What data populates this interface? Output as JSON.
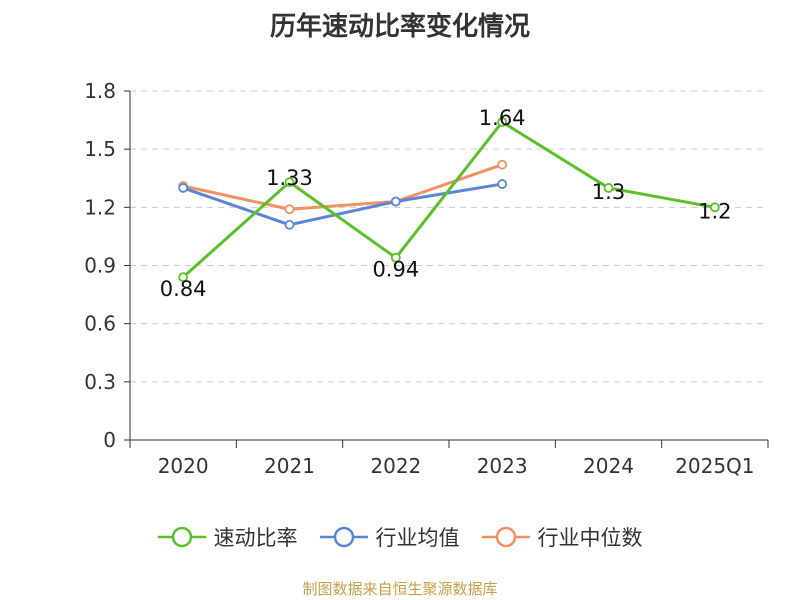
{
  "footer": "制图数据来自恒生聚源数据库",
  "colors": {
    "footer": "#c8a04a",
    "grid": "#cccccc",
    "axis": "#333333"
  },
  "chart_data": {
    "type": "line",
    "title": "历年速动比率变化情况",
    "categories": [
      "2020",
      "2021",
      "2022",
      "2023",
      "2024",
      "2025Q1"
    ],
    "ylim": [
      0,
      1.8
    ],
    "yticks": [
      "0",
      "0.3",
      "0.6",
      "0.9",
      "1.2",
      "1.5",
      "1.8"
    ],
    "grid": true,
    "legend_position": "bottom",
    "series": [
      {
        "name": "速动比率",
        "color": "#5cc02a",
        "values": [
          0.84,
          1.33,
          0.94,
          1.64,
          1.3,
          1.2
        ],
        "labels": [
          "0.84",
          "1.33",
          "0.94",
          "1.64",
          "1.3",
          "1.2"
        ],
        "show_labels": true
      },
      {
        "name": "行业均值",
        "color": "#5b86d6",
        "values": [
          1.3,
          1.11,
          1.23,
          1.32,
          null,
          null
        ],
        "show_labels": false
      },
      {
        "name": "行业中位数",
        "color": "#f29263",
        "values": [
          1.31,
          1.19,
          1.23,
          1.42,
          null,
          null
        ],
        "show_labels": false
      }
    ]
  }
}
